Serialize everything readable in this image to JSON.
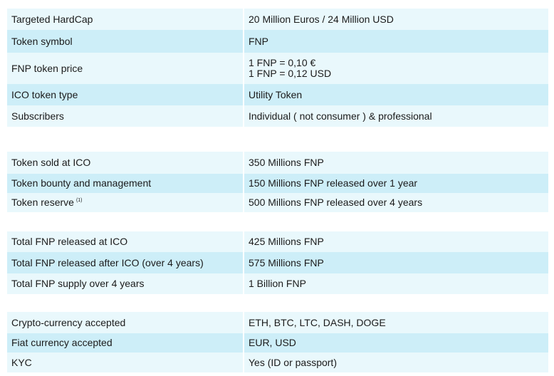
{
  "groups": [
    {
      "rows": [
        {
          "label": "Targeted HardCap",
          "value": "20 Million Euros / 24 Million USD"
        },
        {
          "label": "Token symbol",
          "value": "FNP"
        },
        {
          "label": "FNP token price",
          "value_lines": [
            "1 FNP = 0,10 €",
            "1 FNP = 0,12 USD"
          ]
        },
        {
          "label": "ICO token type",
          "value": "Utility Token"
        },
        {
          "label": "Subscribers",
          "value": "Individual ( not consumer ) & professional"
        }
      ]
    },
    {
      "rows": [
        {
          "label": "Token sold at ICO",
          "value": "350 Millions FNP"
        },
        {
          "label": "Token bounty and management",
          "value": "150 Millions FNP released over 1 year"
        },
        {
          "label": "Token reserve",
          "footnote": "(1)",
          "value": "500 Millions FNP released over 4 years"
        }
      ]
    },
    {
      "rows": [
        {
          "label": "Total FNP released at ICO",
          "value": "425 Millions FNP"
        },
        {
          "label": "Total FNP released after ICO (over 4 years)",
          "value": "575 Millions FNP"
        },
        {
          "label": "Total FNP supply over 4 years",
          "value": "1 Billion FNP"
        }
      ]
    },
    {
      "rows": [
        {
          "label": "Crypto-currency accepted",
          "value": "ETH, BTC, LTC, DASH, DOGE"
        },
        {
          "label": "Fiat currency accepted",
          "value": "EUR, USD"
        },
        {
          "label": "KYC",
          "value": "Yes (ID or passport)"
        }
      ]
    }
  ],
  "colors": {
    "row_light": "#e9f8fc",
    "row_dark": "#cdeef8",
    "text": "#1b1b1b"
  }
}
